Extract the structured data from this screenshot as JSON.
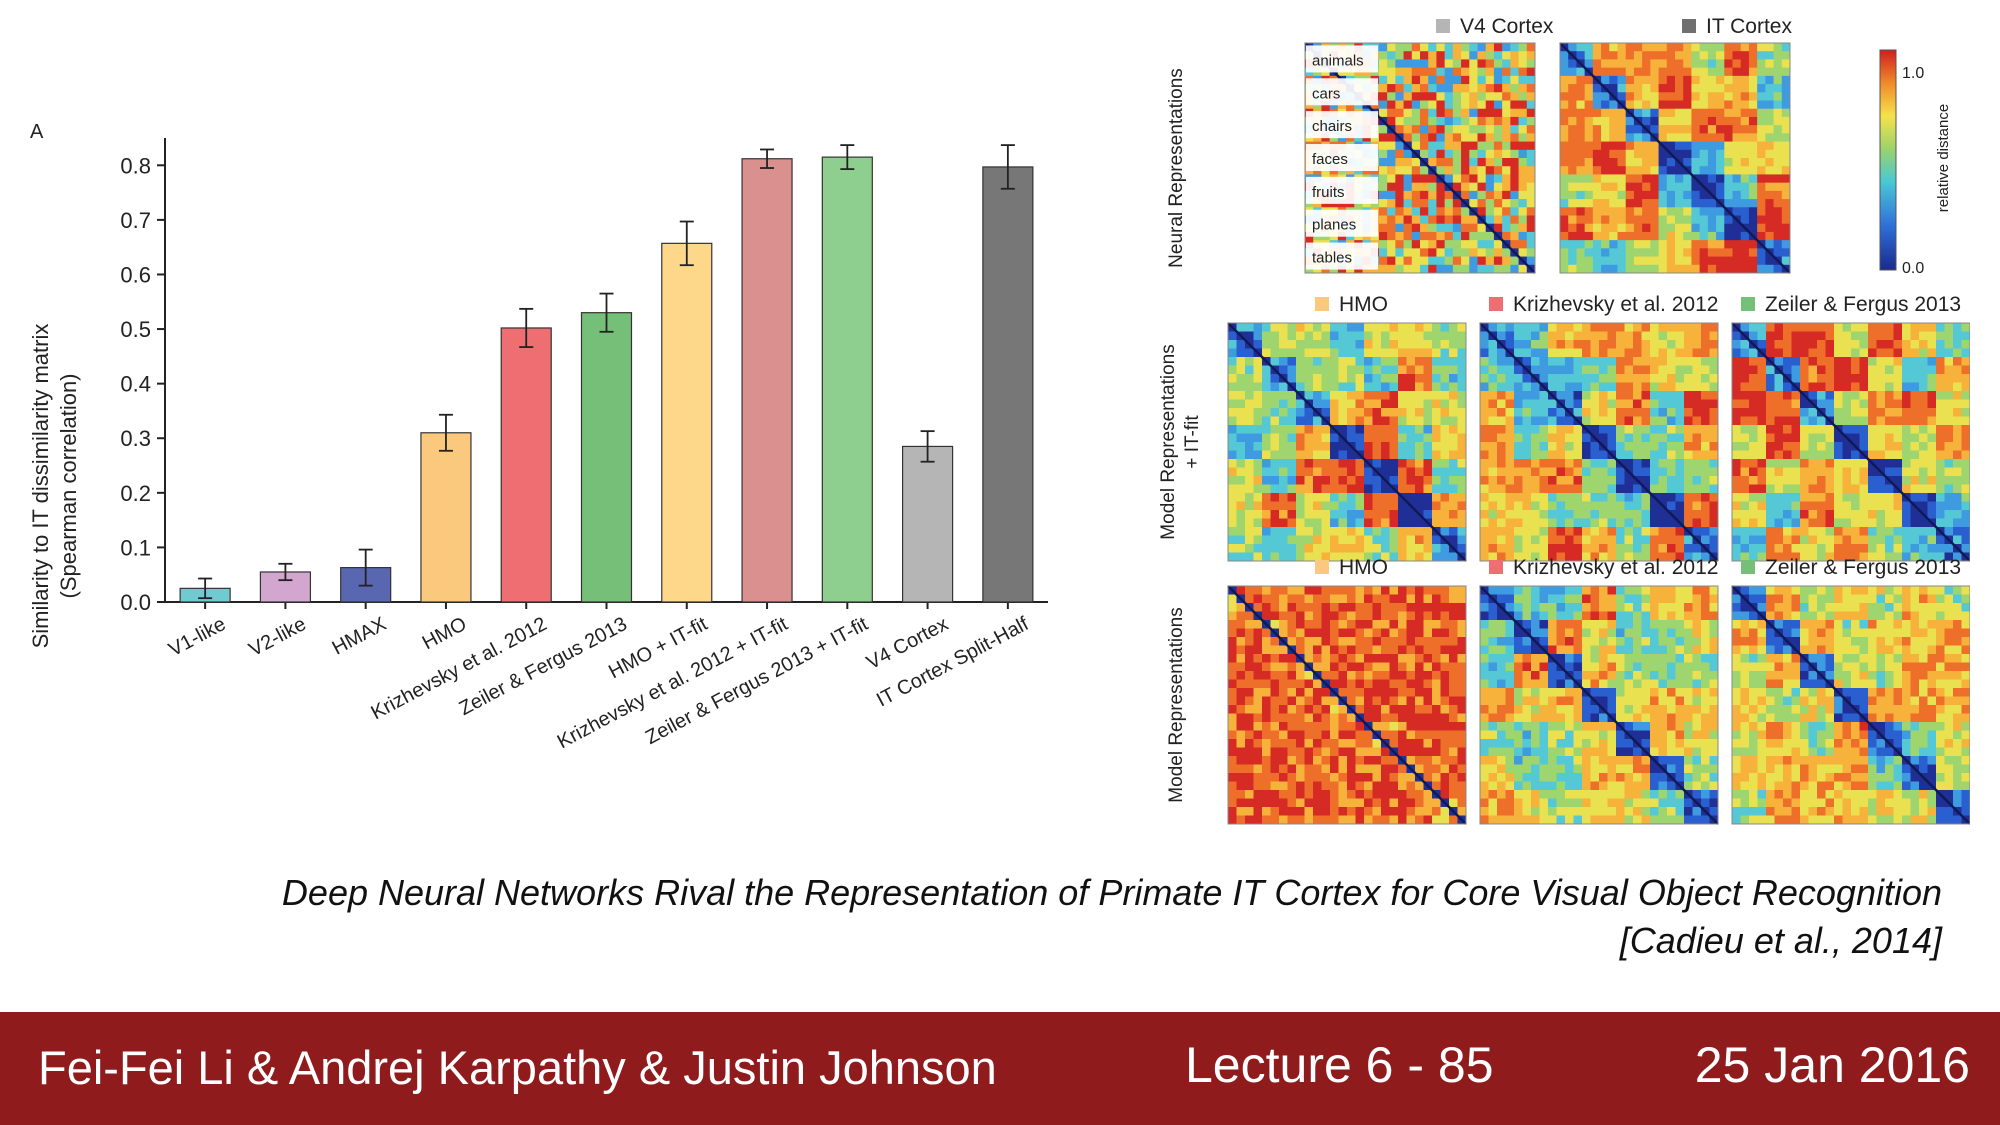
{
  "chart_data": [
    {
      "type": "bar",
      "panel_letter": "A",
      "ylabel_line1": "Similarity to IT dissimilarity matrix",
      "ylabel_line2": "(Spearman correlation)",
      "ylim": [
        0,
        0.85
      ],
      "yticks": [
        "0.0",
        "0.1",
        "0.2",
        "0.3",
        "0.4",
        "0.5",
        "0.6",
        "0.7",
        "0.8"
      ],
      "grid": false,
      "categories": [
        "V1-like",
        "V2-like",
        "HMAX",
        "HMO",
        "Krizhevsky et al. 2012",
        "Zeiler & Fergus 2013",
        "HMO + IT-fit",
        "Krizhevsky et al. 2012 + IT-fit",
        "Zeiler & Fergus 2013 + IT-fit",
        "V4 Cortex",
        "IT Cortex Split-Half"
      ],
      "values": [
        0.025,
        0.055,
        0.063,
        0.31,
        0.502,
        0.53,
        0.657,
        0.812,
        0.815,
        0.285,
        0.797
      ],
      "errors": [
        0.018,
        0.015,
        0.033,
        0.033,
        0.035,
        0.035,
        0.04,
        0.017,
        0.022,
        0.028,
        0.04
      ],
      "colors": [
        "#6fcbd1",
        "#d3a6d0",
        "#5967b1",
        "#fbc97e",
        "#ee6e72",
        "#76bf78",
        "#fdd88a",
        "#d9908f",
        "#8ecf8f",
        "#b5b5b5",
        "#777777"
      ]
    },
    {
      "type": "heatmap",
      "categories": [
        "animals",
        "cars",
        "chairs",
        "faces",
        "fruits",
        "planes",
        "tables"
      ],
      "colorbar": {
        "max_label": "1.0",
        "min_label": "0.0",
        "label": "relative distance"
      },
      "rows": [
        {
          "label": "Neural Representations",
          "panels": [
            {
              "title": "V4 Cortex",
              "swatch": "#b5b5b5"
            },
            {
              "title": "IT Cortex",
              "swatch": "#707070"
            }
          ]
        },
        {
          "label_line1": "Model Representations",
          "label_line2": "+ IT-fit",
          "panels": [
            {
              "title": "HMO",
              "swatch": "#fbc97e"
            },
            {
              "title": "Krizhevsky et al. 2012",
              "swatch": "#ee6e72"
            },
            {
              "title": "Zeiler & Fergus 2013",
              "swatch": "#76bf78"
            }
          ]
        },
        {
          "label": "Model Representations",
          "panels": [
            {
              "title": "HMO",
              "swatch": "#fbc97e"
            },
            {
              "title": "Krizhevsky et al. 2012",
              "swatch": "#ee6e72"
            },
            {
              "title": "Zeiler & Fergus 2013",
              "swatch": "#76bf78"
            }
          ]
        }
      ]
    }
  ],
  "caption": {
    "title": "Deep Neural Networks Rival the Representation of Primate IT Cortex for Core Visual Object Recognition",
    "citation": "[Cadieu et al., 2014]"
  },
  "footer": {
    "authors": "Fei-Fei Li & Andrej Karpathy & Justin Johnson",
    "lecture": "Lecture 6 - 85",
    "date": "25 Jan 2016"
  }
}
